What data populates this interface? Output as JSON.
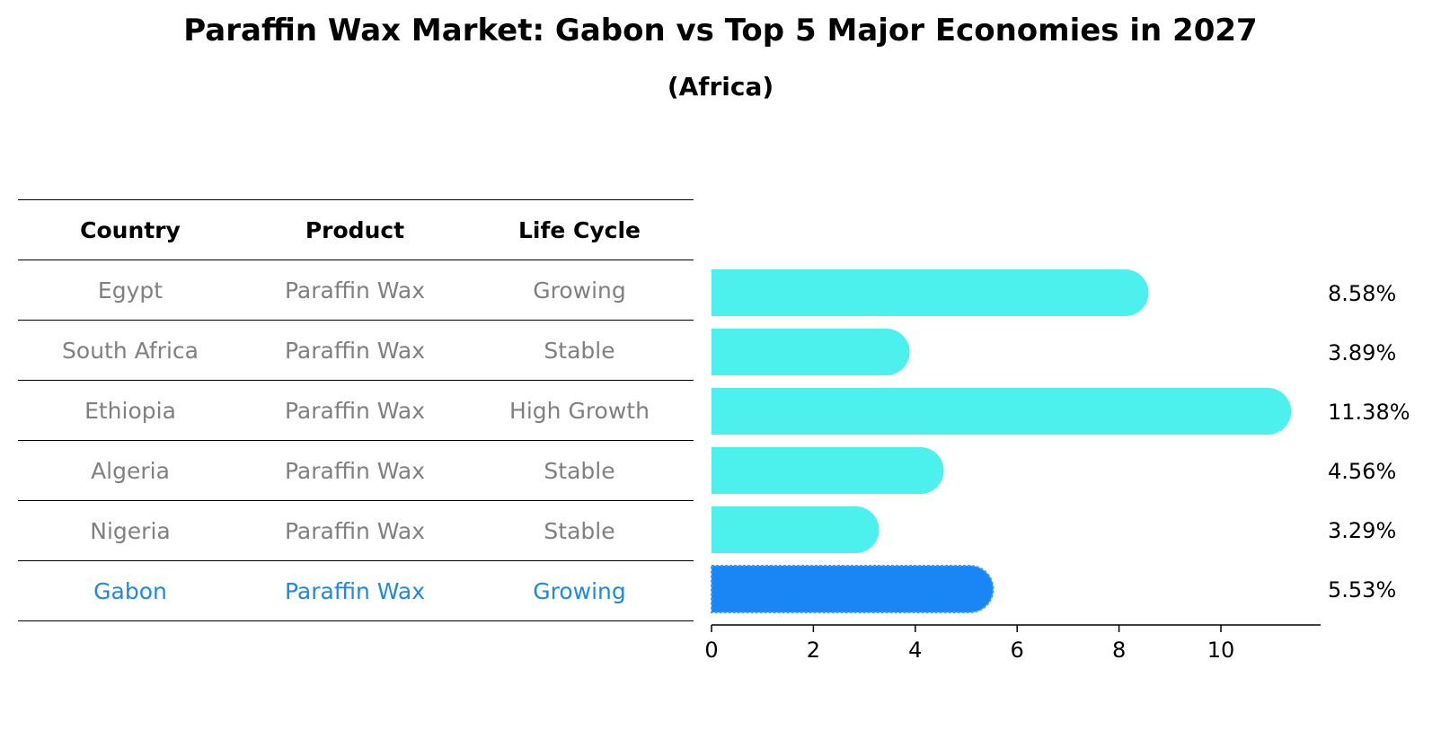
{
  "chart_data": {
    "type": "bar",
    "orientation": "horizontal",
    "title": "Paraffin Wax Market: Gabon vs Top 5 Major Economies in 2027",
    "subtitle": "(Africa)",
    "table": {
      "headers": [
        "Country",
        "Product",
        "Life Cycle"
      ],
      "rows": [
        {
          "country": "Egypt",
          "product": "Paraffin Wax",
          "life_cycle": "Growing"
        },
        {
          "country": "South Africa",
          "product": "Paraffin Wax",
          "life_cycle": "Stable"
        },
        {
          "country": "Ethiopia",
          "product": "Paraffin Wax",
          "life_cycle": "High Growth"
        },
        {
          "country": "Algeria",
          "product": "Paraffin Wax",
          "life_cycle": "Stable"
        },
        {
          "country": "Nigeria",
          "product": "Paraffin Wax",
          "life_cycle": "Stable"
        },
        {
          "country": "Gabon",
          "product": "Paraffin Wax",
          "life_cycle": "Growing"
        }
      ]
    },
    "categories": [
      "Egypt",
      "South Africa",
      "Ethiopia",
      "Algeria",
      "Nigeria",
      "Gabon"
    ],
    "values": [
      8.58,
      3.89,
      11.38,
      4.56,
      3.29,
      5.53
    ],
    "value_labels": [
      "8.58%",
      "3.89%",
      "11.38%",
      "4.56%",
      "3.29%",
      "5.53%"
    ],
    "highlight": "Gabon",
    "xlim": [
      0,
      12
    ],
    "xticks": [
      0,
      2,
      4,
      6,
      8,
      10
    ],
    "xlabel": "",
    "ylabel": "",
    "grid": false,
    "colors": {
      "bar": "#4cf0ec",
      "highlight": "#1a86f5",
      "highlight_text": "#1e88e5",
      "muted_text": "#808080"
    }
  }
}
